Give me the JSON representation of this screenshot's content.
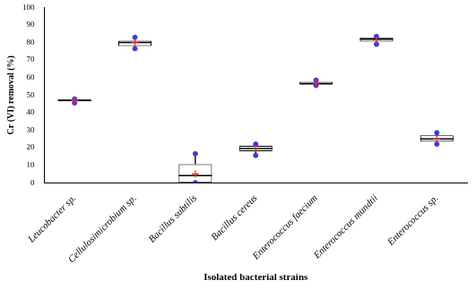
{
  "chart_data": {
    "type": "box",
    "y_label": "Cr (VI) removal (%)",
    "x_label": "Isolated bacterial strains",
    "categories": [
      "Leucobacter sp.",
      "Cellulosimicrobium sp.",
      "Bacillus subtilis",
      "Bacillus cereus",
      "Enterococcus faecium",
      "Enterococcus mundtii",
      "Enterococcus sp."
    ],
    "min": [
      45.5,
      76.5,
      0,
      15.5,
      55.5,
      79,
      22
    ],
    "q1": [
      46.5,
      78,
      0,
      18,
      56,
      80.5,
      23.5
    ],
    "median": [
      47,
      80,
      4,
      19.5,
      56.5,
      82,
      25
    ],
    "q3": [
      47.5,
      81,
      10.5,
      21,
      57.5,
      83,
      27
    ],
    "max": [
      47.8,
      83,
      16.5,
      22,
      58.5,
      83.5,
      28.5
    ],
    "mean": [
      47,
      80,
      5,
      19.5,
      56.8,
      81.5,
      25
    ],
    "ylim": [
      0,
      100
    ],
    "yticks": [
      0,
      10,
      20,
      30,
      40,
      50,
      60,
      70,
      80,
      90,
      100
    ],
    "grid": false
  }
}
